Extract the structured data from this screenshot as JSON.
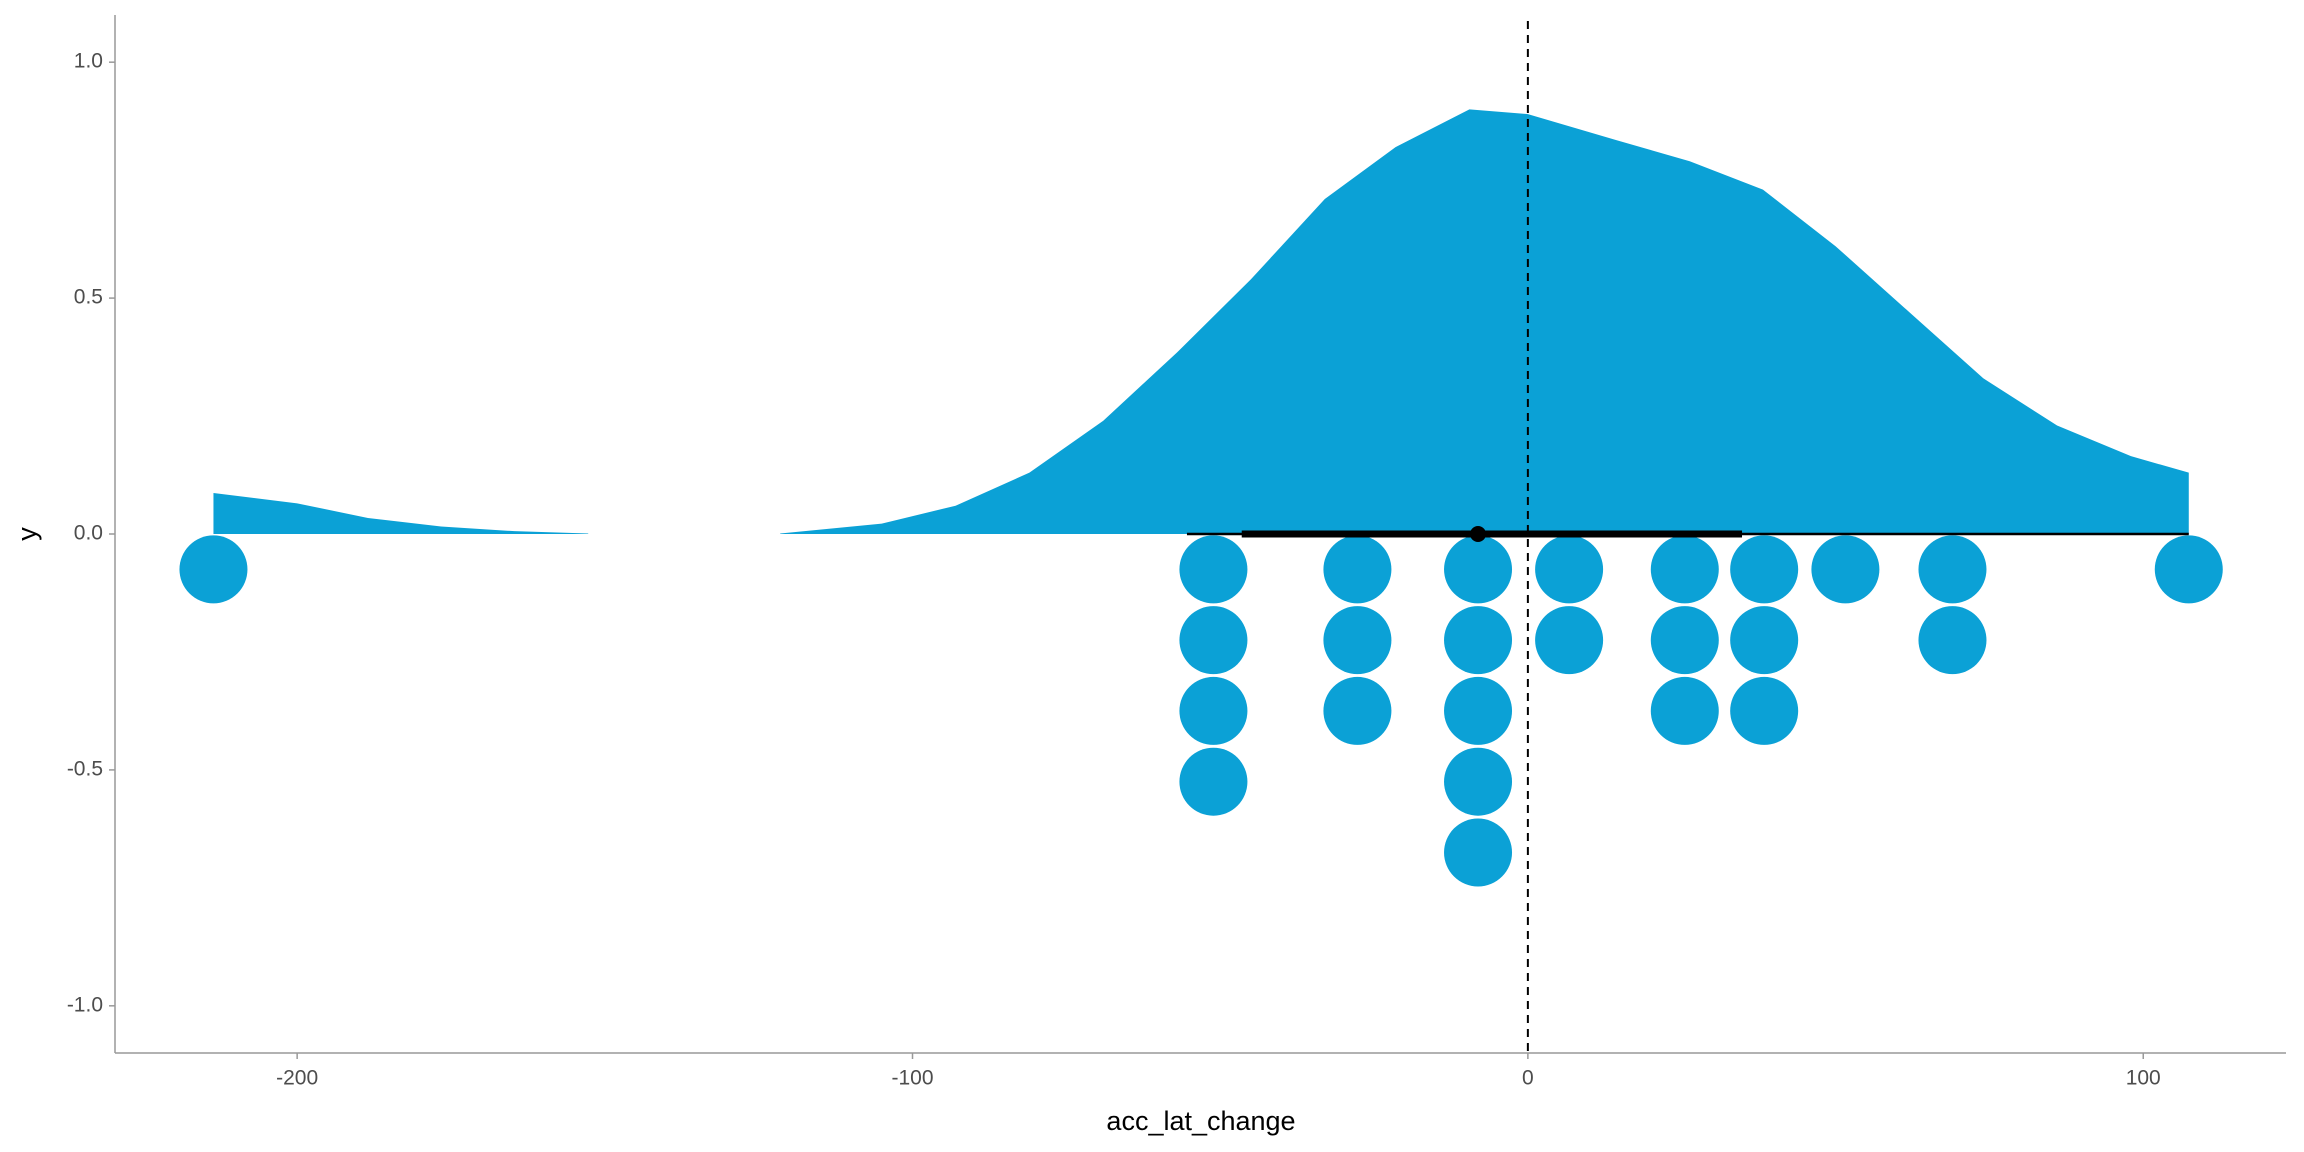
{
  "chart_data": {
    "type": "raincloud",
    "xlabel": "acc_lat_change",
    "ylabel": "y",
    "xlim": [
      -229.6,
      123.2
    ],
    "ylim": [
      -1.1,
      1.1
    ],
    "xticks": [
      -200,
      -100,
      0,
      100
    ],
    "yticks": [
      {
        "value": -1,
        "label": "-1.0"
      },
      {
        "value": -0.5,
        "label": "-0.5"
      },
      {
        "value": 0,
        "label": "0.0"
      },
      {
        "value": 0.5,
        "label": "0.5"
      },
      {
        "value": 1,
        "label": "1.0"
      }
    ],
    "color": "#0ba1d6",
    "density": {
      "x": [
        -213.6,
        -200,
        -188.5,
        -176.6,
        -164.7,
        -152.7,
        null,
        -121.5,
        -105,
        -93,
        -81,
        -69,
        -57,
        -45,
        -33,
        -21.5,
        -9.5,
        0,
        14.3,
        26.3,
        38.2,
        50,
        62,
        74,
        86,
        98,
        107.4
      ],
      "values": [
        0.087,
        0.065,
        0.034,
        0.016,
        0.006,
        0.001,
        null,
        0.001,
        0.022,
        0.06,
        0.13,
        0.24,
        0.385,
        0.54,
        0.71,
        0.82,
        0.9,
        0.89,
        0.835,
        0.79,
        0.73,
        0.61,
        0.47,
        0.33,
        0.23,
        0.165,
        0.13
      ]
    },
    "dots": {
      "x": [
        -213.6,
        -51.1,
        -51.1,
        -51.1,
        -51.1,
        -27.7,
        -27.7,
        -27.7,
        -8.1,
        -8.1,
        -8.1,
        -8.1,
        -8.1,
        6.7,
        6.7,
        25.5,
        25.5,
        25.5,
        38.4,
        38.4,
        38.4,
        51.6,
        69.0,
        69.0,
        107.4
      ],
      "y": [
        -0.075,
        -0.075,
        -0.225,
        -0.375,
        -0.525,
        -0.075,
        -0.225,
        -0.375,
        -0.075,
        -0.225,
        -0.375,
        -0.525,
        -0.675,
        -0.075,
        -0.225,
        -0.075,
        -0.225,
        -0.375,
        -0.075,
        -0.225,
        -0.375,
        -0.075,
        -0.075,
        -0.225,
        -0.075
      ]
    },
    "interval": {
      "y": 0,
      "outer": [
        -55.4,
        107.4
      ],
      "inner": [
        -46.5,
        34.8
      ],
      "point": -8.1
    },
    "vline": 0
  }
}
